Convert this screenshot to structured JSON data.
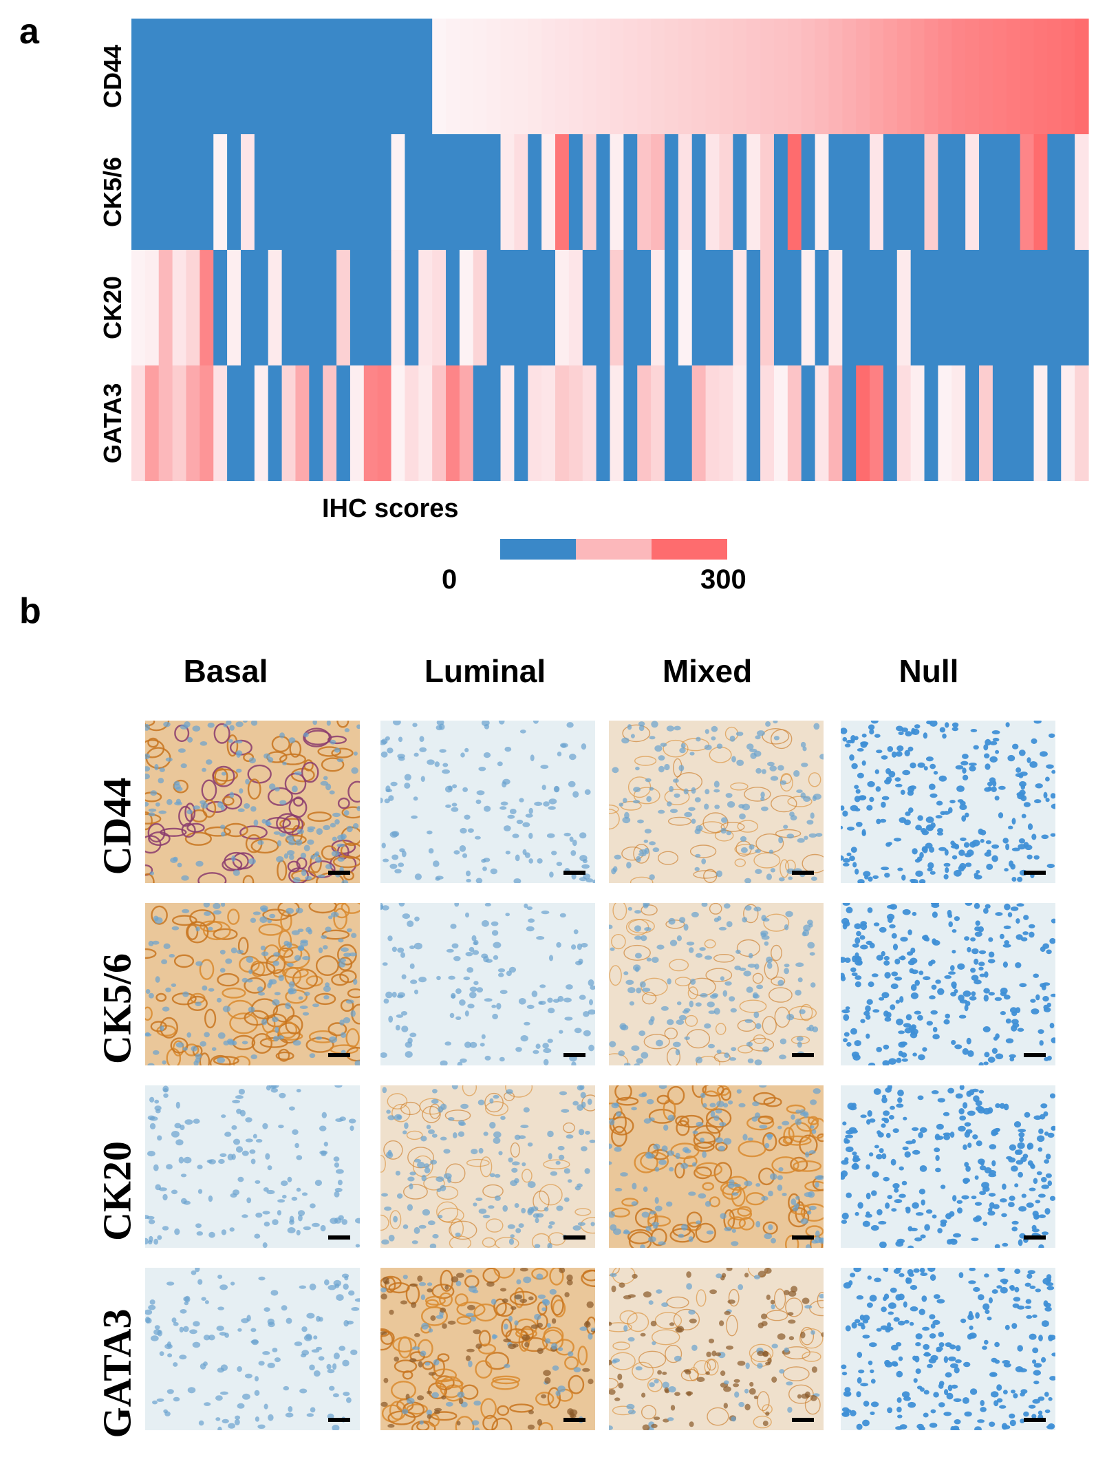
{
  "panel_a_label": "a",
  "panel_b_label": "b",
  "chart_data": {
    "type": "heatmap",
    "title": "",
    "rows": [
      "CD44",
      "CK5/6",
      "CK20",
      "GATA3"
    ],
    "n_samples": 70,
    "value_scale": [
      0,
      300
    ],
    "legend_title": "IHC scores",
    "legend_min_label": "0",
    "legend_max_label": "300",
    "colors": {
      "low": "#3a88c8",
      "mid": "#fcb8bb",
      "high": "#fe6c6e",
      "zero_white": "#fdf6f8"
    },
    "values": [
      [
        0,
        0,
        0,
        0,
        0,
        0,
        0,
        0,
        0,
        0,
        0,
        0,
        0,
        0,
        0,
        0,
        0,
        0,
        0,
        0,
        0,
        0,
        5,
        12,
        14,
        18,
        22,
        26,
        30,
        35,
        40,
        45,
        50,
        55,
        60,
        65,
        70,
        75,
        80,
        85,
        90,
        95,
        100,
        105,
        110,
        115,
        120,
        125,
        130,
        140,
        150,
        160,
        170,
        180,
        190,
        200,
        210,
        220,
        230,
        240,
        250,
        255,
        260,
        265,
        270,
        275,
        280,
        285,
        290,
        300
      ],
      [
        0,
        0,
        0,
        0,
        0,
        0,
        10,
        0,
        40,
        0,
        0,
        0,
        0,
        0,
        0,
        0,
        0,
        0,
        0,
        10,
        0,
        0,
        0,
        0,
        0,
        0,
        0,
        30,
        60,
        0,
        20,
        280,
        0,
        90,
        0,
        20,
        0,
        120,
        150,
        0,
        50,
        0,
        40,
        80,
        0,
        30,
        100,
        0,
        300,
        0,
        20,
        0,
        0,
        0,
        40,
        0,
        0,
        0,
        100,
        0,
        0,
        40,
        0,
        0,
        0,
        250,
        300,
        0,
        0,
        40
      ],
      [
        10,
        20,
        150,
        40,
        80,
        250,
        0,
        20,
        0,
        0,
        30,
        0,
        0,
        0,
        0,
        90,
        0,
        0,
        0,
        30,
        0,
        40,
        60,
        0,
        10,
        80,
        0,
        0,
        0,
        0,
        0,
        20,
        40,
        0,
        0,
        100,
        0,
        0,
        30,
        0,
        10,
        0,
        0,
        0,
        40,
        0,
        100,
        0,
        0,
        20,
        0,
        30,
        0,
        0,
        0,
        0,
        30,
        0,
        0,
        0,
        0,
        0,
        0,
        0,
        0,
        0,
        0,
        0,
        0,
        0
      ],
      [
        60,
        200,
        150,
        100,
        180,
        220,
        50,
        0,
        0,
        20,
        0,
        80,
        180,
        0,
        120,
        0,
        20,
        250,
        260,
        10,
        60,
        30,
        120,
        250,
        180,
        0,
        0,
        30,
        0,
        50,
        40,
        110,
        90,
        60,
        0,
        30,
        0,
        120,
        80,
        0,
        0,
        150,
        70,
        60,
        30,
        0,
        60,
        10,
        120,
        0,
        40,
        160,
        0,
        300,
        260,
        0,
        60,
        20,
        0,
        10,
        30,
        0,
        100,
        0,
        0,
        0,
        20,
        0,
        20,
        80
      ]
    ]
  },
  "panel_b": {
    "columns": [
      "Basal",
      "Luminal",
      "Mixed",
      "Null"
    ],
    "rows": [
      "CD44",
      "CK5/6",
      "CK20",
      "GATA3"
    ]
  }
}
